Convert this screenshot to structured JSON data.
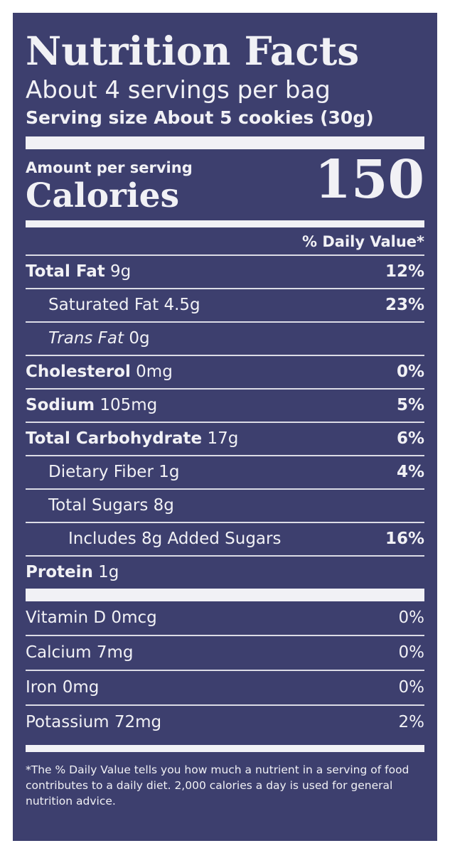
{
  "label": {
    "title": "Nutrition Facts",
    "servings_per_container": "About 4 servings per bag",
    "serving_size": "Serving size About 5 cookies (30g)",
    "amount_per_serving": "Amount per serving",
    "calories_label": "Calories",
    "calories_value": "150",
    "daily_value_header": "% Daily Value*",
    "nutrients": [
      {
        "name": "Total Fat",
        "amount": "9g",
        "dv": "12%"
      },
      {
        "name": "Saturated Fat",
        "amount": "4.5g",
        "dv": "23%"
      },
      {
        "name": "Trans Fat",
        "amount": "0g",
        "dv": ""
      },
      {
        "name": "Cholesterol",
        "amount": "0mg",
        "dv": "0%"
      },
      {
        "name": "Sodium",
        "amount": "105mg",
        "dv": "5%"
      },
      {
        "name": "Total Carbohydrate",
        "amount": "17g",
        "dv": "6%"
      },
      {
        "name": "Dietary Fiber",
        "amount": "1g",
        "dv": "4%"
      },
      {
        "name": "Total Sugars",
        "amount": "8g",
        "dv": ""
      },
      {
        "name": "Includes 8g Added Sugars",
        "amount": "",
        "dv": "16%"
      },
      {
        "name": "Protein",
        "amount": "1g",
        "dv": ""
      }
    ],
    "vitamins": [
      {
        "name": "Vitamin D 0mcg",
        "dv": "0%"
      },
      {
        "name": "Calcium 7mg",
        "dv": "0%"
      },
      {
        "name": "Iron 0mg",
        "dv": "0%"
      },
      {
        "name": "Potassium 72mg",
        "dv": "2%"
      }
    ],
    "footnote": "*The % Daily Value tells you how much a nutrient in a serving of food contributes to a daily diet. 2,000 calories a day is used for general nutrition advice."
  },
  "colors": {
    "panel": "#3d3f6e",
    "text": "#f1f1f5"
  }
}
